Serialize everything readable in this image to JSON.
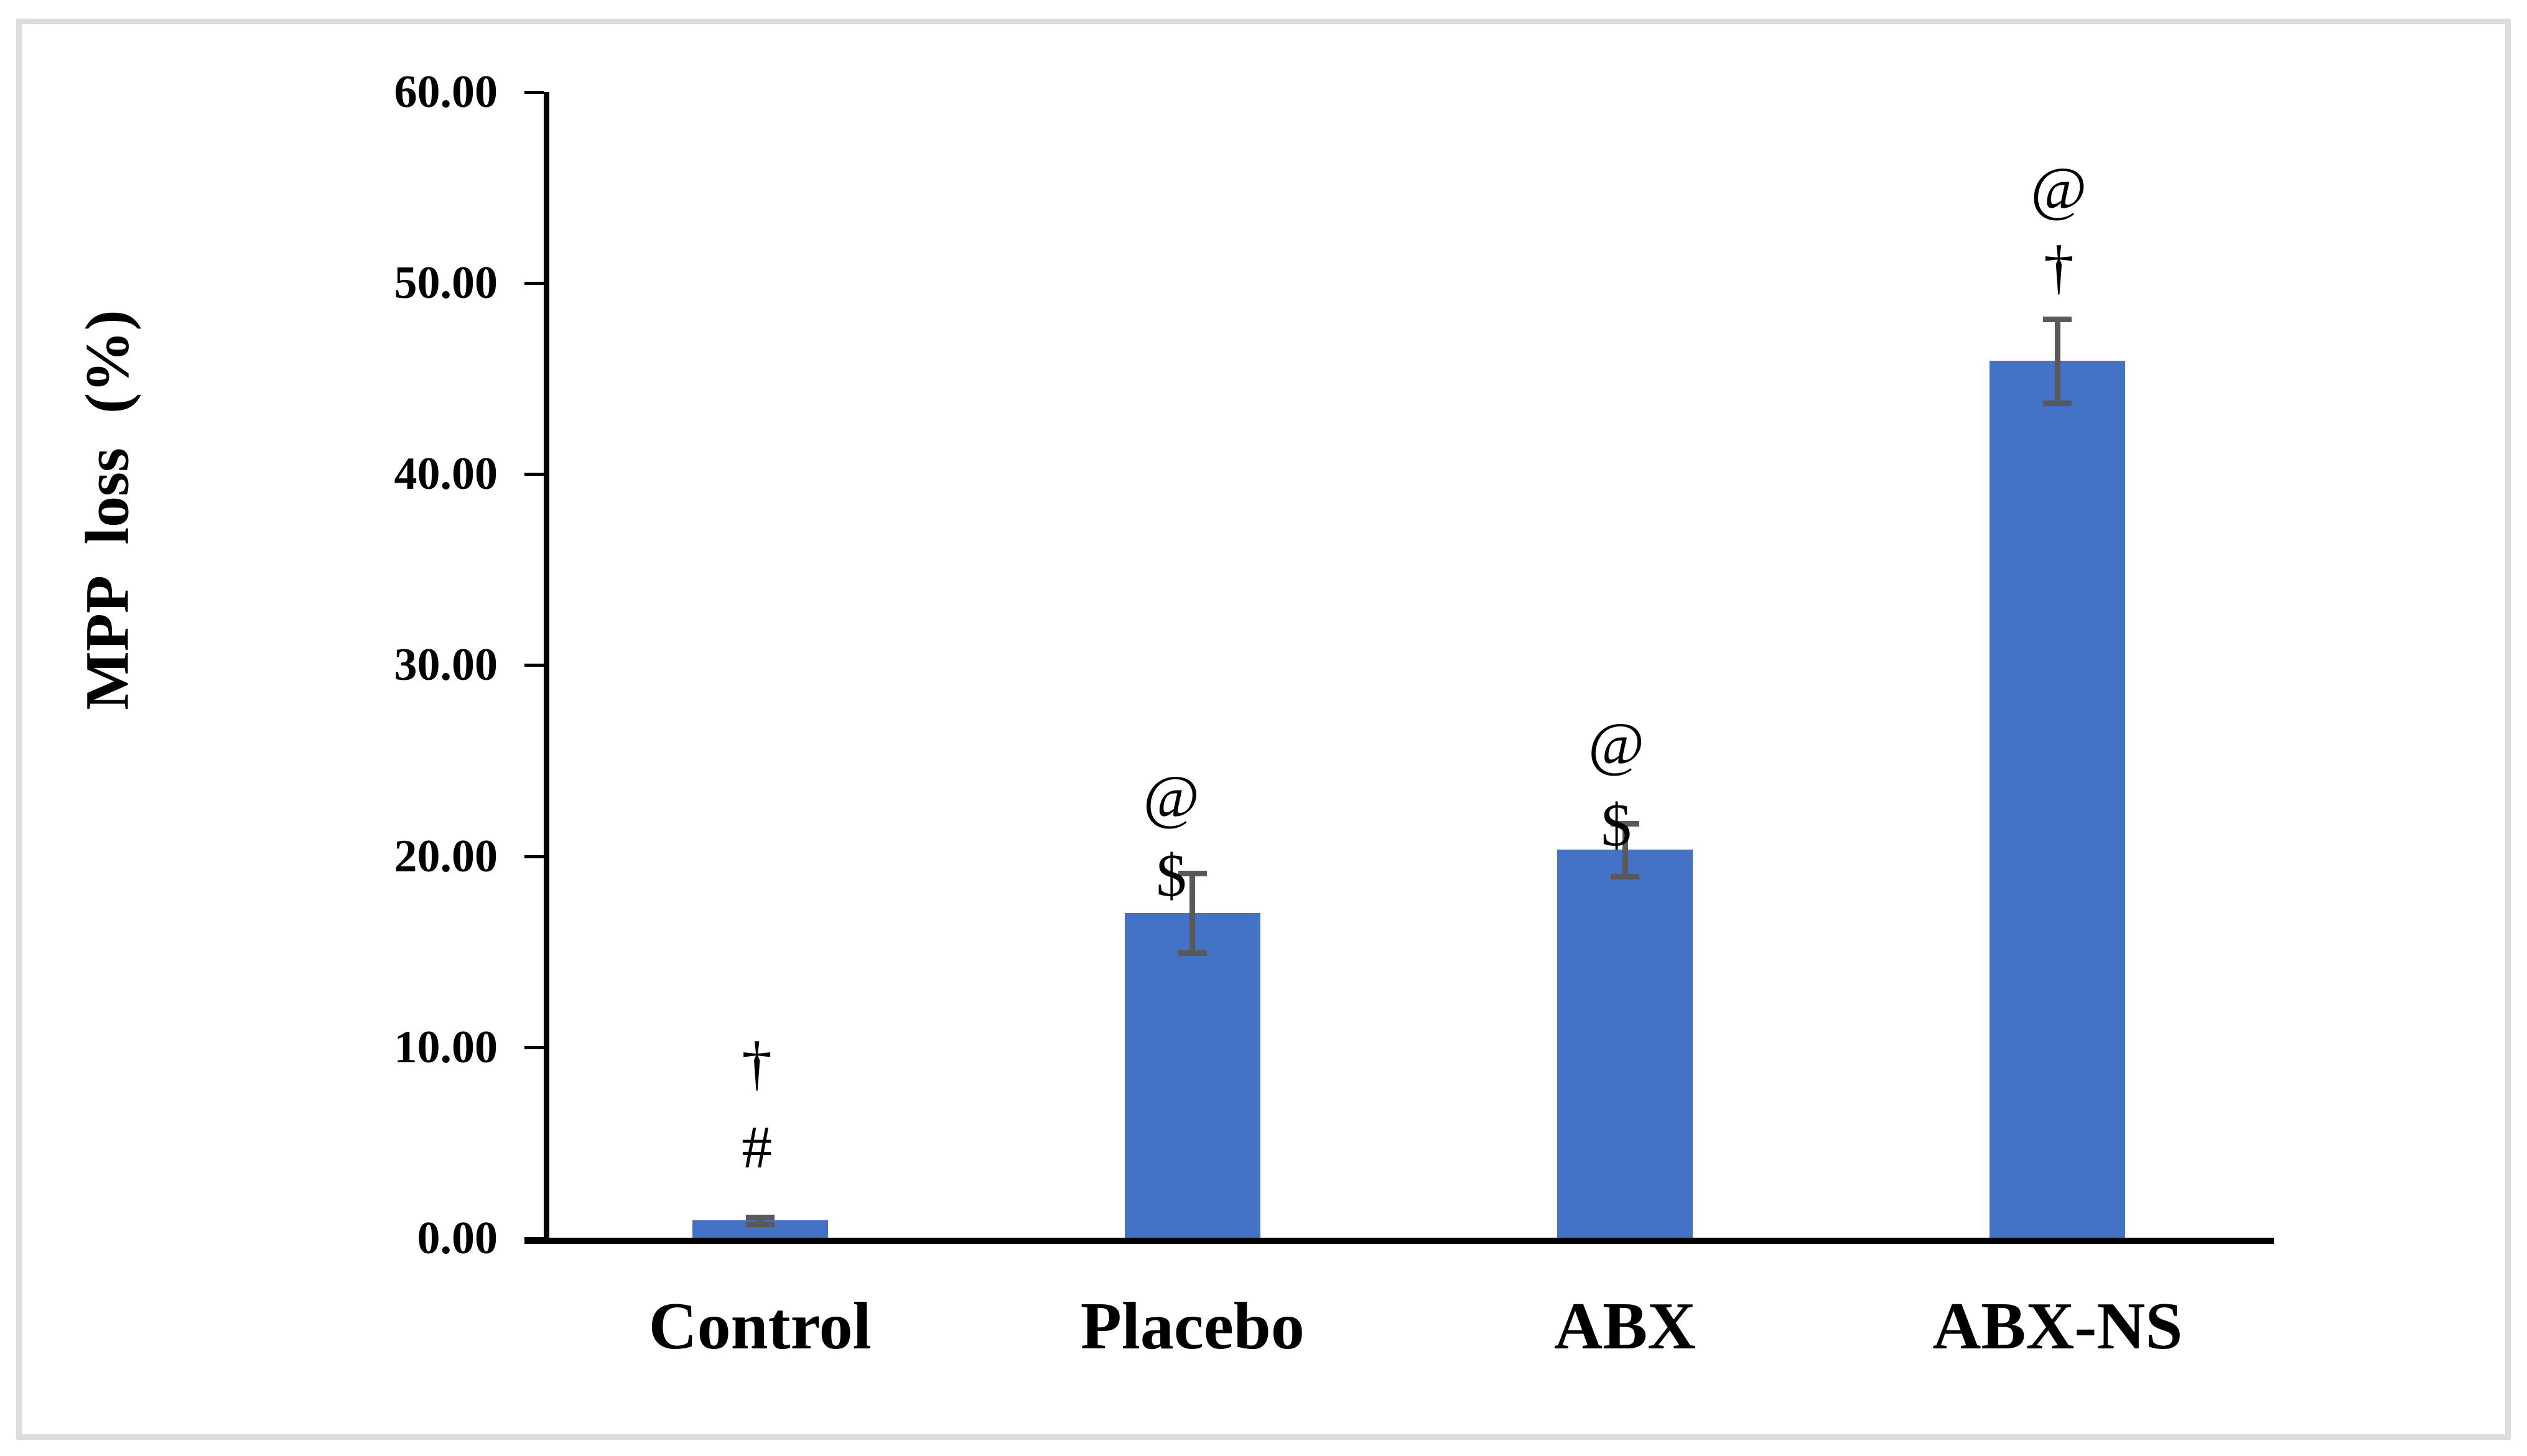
{
  "figure": {
    "background_color": "#FFFFFF",
    "border_color": "#DCDCDC"
  },
  "chart_data": {
    "type": "bar",
    "title": "",
    "xlabel": "",
    "ylabel": "MPP loss (%)",
    "categories": [
      "Control",
      "Placebo",
      "ABX",
      "ABX-NS"
    ],
    "values": [
      0.9,
      17.0,
      20.3,
      45.9
    ],
    "errors": [
      0.2,
      2.1,
      1.4,
      2.2
    ],
    "annotations": [
      [
        "†",
        "#"
      ],
      [
        "@",
        "$"
      ],
      [
        "@",
        "$"
      ],
      [
        "@",
        "†"
      ]
    ],
    "ylim": [
      0,
      60
    ],
    "ytick_values": [
      0,
      10,
      20,
      30,
      40,
      50,
      60
    ],
    "ytick_labels": [
      "0.00",
      "10.00",
      "20.00",
      "30.00",
      "40.00",
      "50.00",
      "60.00"
    ],
    "grid": false,
    "legend": null,
    "bar_color": "#4472C4",
    "error_bar_color": "#595959",
    "axis_color": "#000000"
  }
}
